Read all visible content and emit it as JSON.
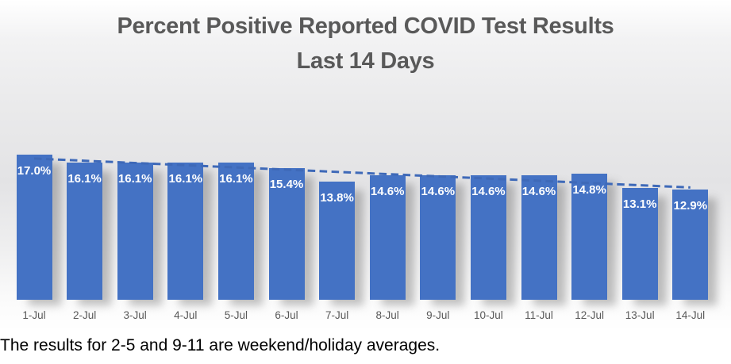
{
  "chart_data": {
    "type": "bar",
    "title": "Percent Positive Reported COVID Test Results",
    "subtitle": "Last 14 Days",
    "categories": [
      "1-Jul",
      "2-Jul",
      "3-Jul",
      "4-Jul",
      "5-Jul",
      "6-Jul",
      "7-Jul",
      "8-Jul",
      "9-Jul",
      "10-Jul",
      "11-Jul",
      "12-Jul",
      "13-Jul",
      "14-Jul"
    ],
    "values": [
      17.0,
      16.1,
      16.1,
      16.1,
      16.1,
      15.4,
      13.8,
      14.6,
      14.6,
      14.6,
      14.6,
      14.8,
      13.1,
      12.9
    ],
    "value_labels": [
      "17.0%",
      "16.1%",
      "16.1%",
      "16.1%",
      "16.1%",
      "15.4%",
      "13.8%",
      "14.6%",
      "14.6%",
      "14.6%",
      "14.6%",
      "14.8%",
      "13.1%",
      "12.9%"
    ],
    "xlabel": "",
    "ylabel": "",
    "ylim": [
      0,
      17.5
    ],
    "grid": false,
    "legend": "none",
    "y_axis_visible": false,
    "bar_color": "#4472C4",
    "value_label_color": "#ffffff",
    "axis_tick_color": "#595959",
    "title_color": "#595959",
    "trendline": {
      "type": "linear",
      "style": "dashed",
      "color": "#3E69B8",
      "start_value": 16.54,
      "end_value": 13.15
    }
  },
  "footer": {
    "note": "The results for 2-5 and 9-11 are weekend/holiday averages."
  }
}
